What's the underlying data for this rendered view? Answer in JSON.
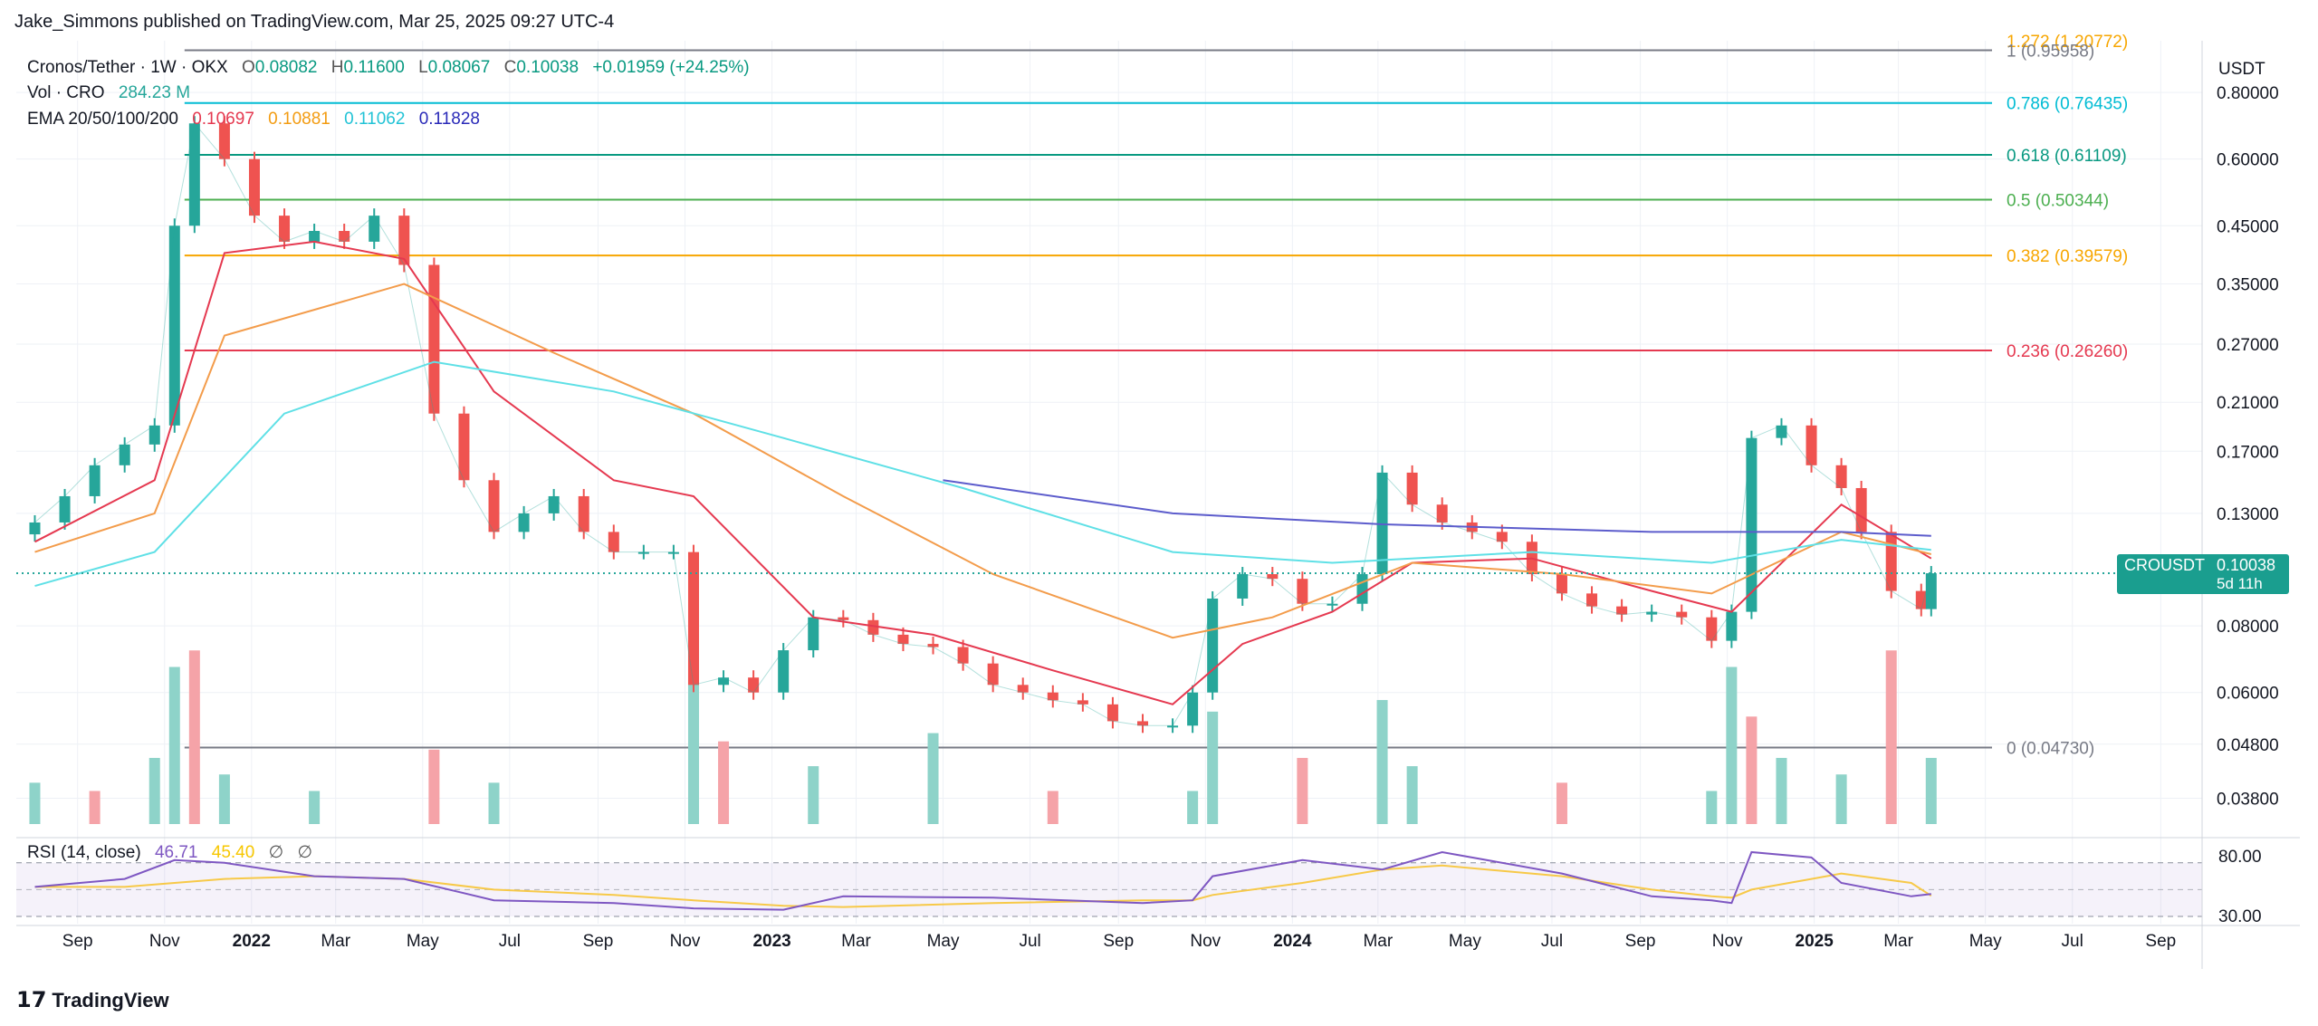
{
  "header": {
    "publisher_line": "Jake_Simmons published on TradingView.com, Mar 25, 2025 09:27 UTC-4"
  },
  "legend": {
    "symbol": "Cronos/Tether · 1W · OKX",
    "ohlc": {
      "o_label": "O",
      "o": "0.08082",
      "h_label": "H",
      "h": "0.11600",
      "l_label": "L",
      "l": "0.08067",
      "c_label": "C",
      "c": "0.10038",
      "change": "+0.01959 (+24.25%)"
    },
    "volume_label": "Vol · CRO",
    "volume_value": "284.23 M",
    "ema_label": "EMA 20/50/100/200",
    "ema_values": [
      "0.10697",
      "0.10881",
      "0.11062",
      "0.11828"
    ],
    "rsi_label": "RSI (14, close)",
    "rsi_value": "46.71",
    "rsi_ma_value": "45.40",
    "rsi_extra": [
      "∅",
      "∅"
    ]
  },
  "footer": {
    "brand": "TradingView"
  },
  "chart_data": {
    "type": "line",
    "title": "Cronos/Tether · 1W · OKX",
    "currency": "USDT",
    "price_scale": "log",
    "ylim": [
      0.034,
      1.0
    ],
    "y_tick_labels": [
      "0.80000",
      "0.60000",
      "0.45000",
      "0.35000",
      "0.27000",
      "0.21000",
      "0.17000",
      "0.13000",
      "0.08000",
      "0.06000",
      "0.04800",
      "0.03800"
    ],
    "x_tick_labels": [
      "Sep",
      "Nov",
      "2022",
      "Mar",
      "May",
      "Jul",
      "Sep",
      "Nov",
      "2023",
      "Mar",
      "May",
      "Jul",
      "Sep",
      "Nov",
      "2024",
      "Mar",
      "May",
      "Jul",
      "Sep",
      "Nov",
      "2025",
      "Mar",
      "May",
      "Jul",
      "Sep"
    ],
    "x_tick_dates": [
      "2021-09-01",
      "2021-11-01",
      "2022-01-01",
      "2022-03-01",
      "2022-05-01",
      "2022-07-01",
      "2022-09-01",
      "2022-11-01",
      "2023-01-01",
      "2023-03-01",
      "2023-05-01",
      "2023-07-01",
      "2023-09-01",
      "2023-11-01",
      "2024-01-01",
      "2024-03-01",
      "2024-05-01",
      "2024-07-01",
      "2024-09-01",
      "2024-11-01",
      "2025-01-01",
      "2025-03-01",
      "2025-05-01",
      "2025-07-01",
      "2025-09-01"
    ],
    "current_price": {
      "label": "CROUSDT",
      "value": "0.10038",
      "countdown": "5d 11h"
    },
    "fib_levels": [
      {
        "label": "1.272 (1.20772)",
        "price": 1.20772,
        "color": "#f7a600"
      },
      {
        "label": "1 (0.95958)",
        "price": 0.95958,
        "color": "#787b86"
      },
      {
        "label": "0.786 (0.76435)",
        "price": 0.76435,
        "color": "#00bcd4"
      },
      {
        "label": "0.618 (0.61109)",
        "price": 0.61109,
        "color": "#089981"
      },
      {
        "label": "0.5 (0.50344)",
        "price": 0.50344,
        "color": "#4caf50"
      },
      {
        "label": "0.382 (0.39579)",
        "price": 0.39579,
        "color": "#f7a600"
      },
      {
        "label": "0.236 (0.26260)",
        "price": 0.2626,
        "color": "#e53950"
      },
      {
        "label": "0 (0.04730)",
        "price": 0.0473,
        "color": "#787b86"
      }
    ],
    "fib_start_date": "2021-11-15",
    "price_series": {
      "name": "Cronos/Tether",
      "x": [
        "2021-08-02",
        "2021-08-23",
        "2021-09-13",
        "2021-10-04",
        "2021-10-25",
        "2021-11-08",
        "2021-11-22",
        "2021-12-13",
        "2022-01-03",
        "2022-01-24",
        "2022-02-14",
        "2022-03-07",
        "2022-03-28",
        "2022-04-18",
        "2022-05-09",
        "2022-05-30",
        "2022-06-20",
        "2022-07-11",
        "2022-08-01",
        "2022-08-22",
        "2022-09-12",
        "2022-10-03",
        "2022-10-24",
        "2022-11-07",
        "2022-11-28",
        "2022-12-19",
        "2023-01-09",
        "2023-01-30",
        "2023-02-20",
        "2023-03-13",
        "2023-04-03",
        "2023-04-24",
        "2023-05-15",
        "2023-06-05",
        "2023-06-26",
        "2023-07-17",
        "2023-08-07",
        "2023-08-28",
        "2023-09-18",
        "2023-10-09",
        "2023-10-23",
        "2023-11-06",
        "2023-11-27",
        "2023-12-18",
        "2024-01-08",
        "2024-01-29",
        "2024-02-19",
        "2024-03-04",
        "2024-03-25",
        "2024-04-15",
        "2024-05-06",
        "2024-05-27",
        "2024-06-17",
        "2024-07-08",
        "2024-07-29",
        "2024-08-19",
        "2024-09-09",
        "2024-09-30",
        "2024-10-21",
        "2024-11-04",
        "2024-11-18",
        "2024-12-09",
        "2024-12-30",
        "2025-01-20",
        "2025-02-03",
        "2025-02-24",
        "2025-03-17",
        "2025-03-24"
      ],
      "values": [
        0.125,
        0.14,
        0.16,
        0.175,
        0.19,
        0.45,
        0.7,
        0.6,
        0.47,
        0.42,
        0.44,
        0.42,
        0.47,
        0.38,
        0.2,
        0.15,
        0.12,
        0.13,
        0.14,
        0.12,
        0.11,
        0.11,
        0.11,
        0.062,
        0.064,
        0.06,
        0.072,
        0.083,
        0.082,
        0.077,
        0.074,
        0.073,
        0.068,
        0.062,
        0.06,
        0.058,
        0.057,
        0.053,
        0.052,
        0.052,
        0.06,
        0.09,
        0.1,
        0.098,
        0.088,
        0.088,
        0.1,
        0.155,
        0.135,
        0.125,
        0.12,
        0.115,
        0.1,
        0.092,
        0.087,
        0.084,
        0.085,
        0.083,
        0.075,
        0.085,
        0.18,
        0.19,
        0.16,
        0.145,
        0.12,
        0.093,
        0.086,
        0.10038
      ]
    },
    "ema_series": [
      {
        "name": "EMA 20",
        "color": "#e53950",
        "x": [
          "2021-08-02",
          "2021-10-25",
          "2021-12-13",
          "2022-02-14",
          "2022-04-18",
          "2022-06-20",
          "2022-09-12",
          "2022-11-07",
          "2023-01-30",
          "2023-04-24",
          "2023-07-17",
          "2023-10-09",
          "2023-11-27",
          "2024-01-29",
          "2024-03-25",
          "2024-06-17",
          "2024-09-09",
          "2024-11-04",
          "2025-01-20",
          "2025-03-24"
        ],
        "values": [
          0.115,
          0.15,
          0.4,
          0.42,
          0.39,
          0.22,
          0.15,
          0.14,
          0.083,
          0.077,
          0.066,
          0.057,
          0.074,
          0.085,
          0.105,
          0.107,
          0.093,
          0.085,
          0.135,
          0.107
        ]
      },
      {
        "name": "EMA 50",
        "color": "#f39c4b",
        "x": [
          "2021-08-02",
          "2021-10-25",
          "2021-12-13",
          "2022-04-18",
          "2022-08-01",
          "2022-11-07",
          "2023-02-20",
          "2023-06-05",
          "2023-10-09",
          "2023-12-18",
          "2024-03-25",
          "2024-07-08",
          "2024-10-21",
          "2025-01-20",
          "2025-03-24"
        ],
        "values": [
          0.11,
          0.13,
          0.28,
          0.35,
          0.26,
          0.2,
          0.14,
          0.1,
          0.076,
          0.083,
          0.105,
          0.1,
          0.092,
          0.12,
          0.109
        ]
      },
      {
        "name": "EMA 100",
        "color": "#5fe0e6",
        "x": [
          "2021-08-02",
          "2021-10-25",
          "2022-01-24",
          "2022-05-09",
          "2022-09-12",
          "2023-01-09",
          "2023-05-15",
          "2023-10-09",
          "2024-01-29",
          "2024-06-17",
          "2024-10-21",
          "2025-01-20",
          "2025-03-24"
        ],
        "values": [
          0.095,
          0.11,
          0.2,
          0.25,
          0.22,
          0.18,
          0.145,
          0.11,
          0.105,
          0.11,
          0.105,
          0.116,
          0.111
        ]
      },
      {
        "name": "EMA 200",
        "color": "#5c5ccc",
        "x": [
          "2023-05-01",
          "2023-10-09",
          "2024-03-04",
          "2024-09-09",
          "2025-01-20",
          "2025-03-24"
        ],
        "values": [
          0.15,
          0.13,
          0.124,
          0.12,
          0.12,
          0.118
        ]
      }
    ],
    "volume": {
      "name": "Vol · CRO",
      "x": [
        "2021-08-02",
        "2021-09-13",
        "2021-10-25",
        "2021-11-08",
        "2021-11-22",
        "2021-12-13",
        "2022-02-14",
        "2022-05-09",
        "2022-06-20",
        "2022-11-07",
        "2022-11-28",
        "2023-01-30",
        "2023-04-24",
        "2023-07-17",
        "2023-10-23",
        "2023-11-06",
        "2024-01-08",
        "2024-03-04",
        "2024-03-25",
        "2024-07-08",
        "2024-10-21",
        "2024-11-04",
        "2024-11-18",
        "2024-12-09",
        "2025-01-20",
        "2025-02-24",
        "2025-03-24"
      ],
      "values": [
        25,
        20,
        40,
        95,
        105,
        30,
        20,
        45,
        25,
        115,
        50,
        35,
        55,
        20,
        20,
        68,
        40,
        75,
        35,
        25,
        20,
        95,
        65,
        40,
        30,
        105,
        40
      ]
    },
    "rsi": {
      "name": "RSI (14, close)",
      "ylim": [
        30,
        80
      ],
      "y_tick_labels": [
        "80.00",
        "30.00"
      ],
      "x": [
        "2021-08-02",
        "2021-10-04",
        "2021-11-08",
        "2021-12-13",
        "2022-02-14",
        "2022-04-18",
        "2022-06-20",
        "2022-09-12",
        "2022-11-07",
        "2023-01-09",
        "2023-02-20",
        "2023-06-05",
        "2023-09-18",
        "2023-10-23",
        "2023-11-06",
        "2024-01-08",
        "2024-03-04",
        "2024-04-15",
        "2024-07-08",
        "2024-09-09",
        "2024-10-21",
        "2024-11-04",
        "2024-11-18",
        "2024-12-30",
        "2025-01-20",
        "2025-03-10",
        "2025-03-24"
      ],
      "values": [
        52,
        58,
        72,
        70,
        60,
        58,
        42,
        40,
        36,
        35,
        45,
        44,
        40,
        42,
        60,
        72,
        65,
        78,
        62,
        45,
        42,
        40,
        78,
        74,
        55,
        45,
        46.71
      ],
      "ma_values": [
        52,
        52,
        55,
        58,
        60,
        58,
        50,
        46,
        42,
        38,
        37,
        40,
        42,
        42,
        46,
        55,
        65,
        68,
        60,
        50,
        45,
        44,
        50,
        58,
        62,
        55,
        45.4
      ]
    }
  }
}
